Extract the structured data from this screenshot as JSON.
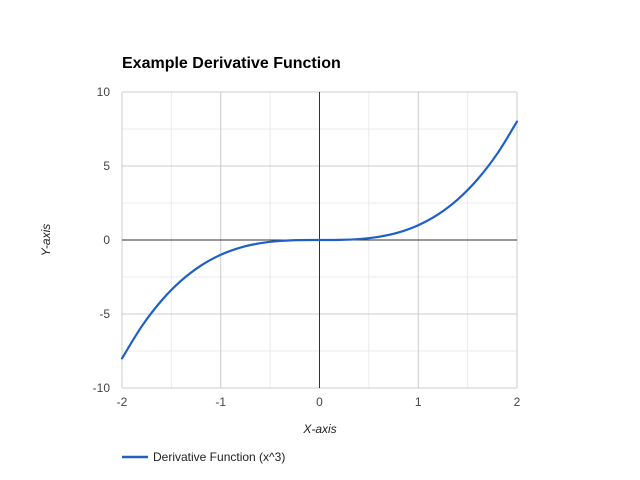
{
  "chart_data": {
    "type": "line",
    "title": "Example Derivative Function",
    "xlabel": "X-axis",
    "ylabel": "Y-axis",
    "xlim": [
      -2,
      2
    ],
    "ylim": [
      -10,
      10
    ],
    "x_ticks": [
      -2,
      -1,
      0,
      1,
      2
    ],
    "y_ticks": [
      10,
      5,
      0,
      -5,
      -10
    ],
    "grid": true,
    "legend_position": "bottom",
    "series": [
      {
        "name": "Derivative Function (x^3)",
        "color": "#1f5fc8",
        "x": [
          -2,
          -1.8,
          -1.6,
          -1.4,
          -1.2,
          -1,
          -0.8,
          -0.6,
          -0.4,
          -0.2,
          0,
          0.2,
          0.4,
          0.6,
          0.8,
          1,
          1.2,
          1.4,
          1.6,
          1.8,
          2
        ],
        "y": [
          -8,
          -5.832,
          -4.096,
          -2.744,
          -1.728,
          -1,
          -0.512,
          -0.216,
          -0.064,
          -0.008,
          0,
          0.008,
          0.064,
          0.216,
          0.512,
          1,
          1.728,
          2.744,
          4.096,
          5.832,
          8
        ]
      }
    ]
  }
}
